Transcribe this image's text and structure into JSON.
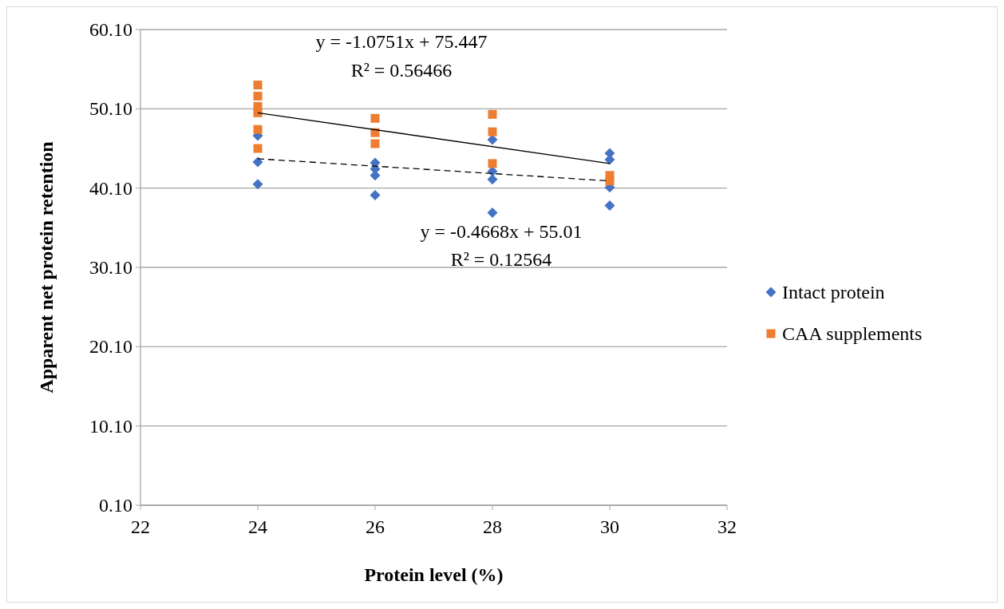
{
  "chart_data": {
    "type": "scatter",
    "xlabel": "Protein level (%)",
    "ylabel": "Apparent net protein retention",
    "xlim": [
      22,
      32
    ],
    "xticks": [
      22,
      24,
      26,
      28,
      30,
      32
    ],
    "ylim": [
      0.1,
      60.1
    ],
    "yticks": [
      {
        "value": 0.1,
        "label": "0.10"
      },
      {
        "value": 10.1,
        "label": "10.10"
      },
      {
        "value": 20.1,
        "label": "20.10"
      },
      {
        "value": 30.1,
        "label": "30.10"
      },
      {
        "value": 40.1,
        "label": "40.10"
      },
      {
        "value": 50.1,
        "label": "50.10"
      },
      {
        "value": 60.1,
        "label": "60.10"
      }
    ],
    "grid": "y",
    "legend": "right",
    "series": [
      {
        "name": "Intact protein",
        "color": "#4472c4",
        "marker": "diamond",
        "x": [
          24,
          24,
          24,
          26,
          26,
          26,
          26,
          28,
          28,
          28,
          28,
          30,
          30,
          30,
          30
        ],
        "values": [
          46.7,
          43.4,
          40.6,
          43.3,
          42.5,
          41.7,
          39.2,
          46.2,
          42.2,
          41.2,
          37.0,
          44.5,
          43.7,
          40.2,
          37.9
        ]
      },
      {
        "name": "CAA supplements",
        "color": "#ed7d31",
        "marker": "square",
        "x": [
          24,
          24,
          24,
          24,
          24,
          24,
          26,
          26,
          26,
          28,
          28,
          28,
          30,
          30
        ],
        "values": [
          53.1,
          51.7,
          50.4,
          49.6,
          47.5,
          45.1,
          48.9,
          47.1,
          45.7,
          49.4,
          47.2,
          43.2,
          41.7,
          41.0
        ]
      },
      {
        "type": "line",
        "color": "#000000",
        "line_style": "solid",
        "marker": "none",
        "x": [
          24,
          30
        ],
        "values": [
          49.6,
          43.2
        ]
      },
      {
        "type": "line",
        "color": "#000000",
        "line_style": "dashed",
        "marker": "none",
        "x": [
          24,
          30
        ],
        "values": [
          43.8,
          41.0
        ]
      }
    ],
    "annotations": [
      "y = -1.0751x + 75.447",
      "R² = 0.56466",
      "y = -0.4668x + 55.01",
      "R² = 0.12564"
    ]
  }
}
